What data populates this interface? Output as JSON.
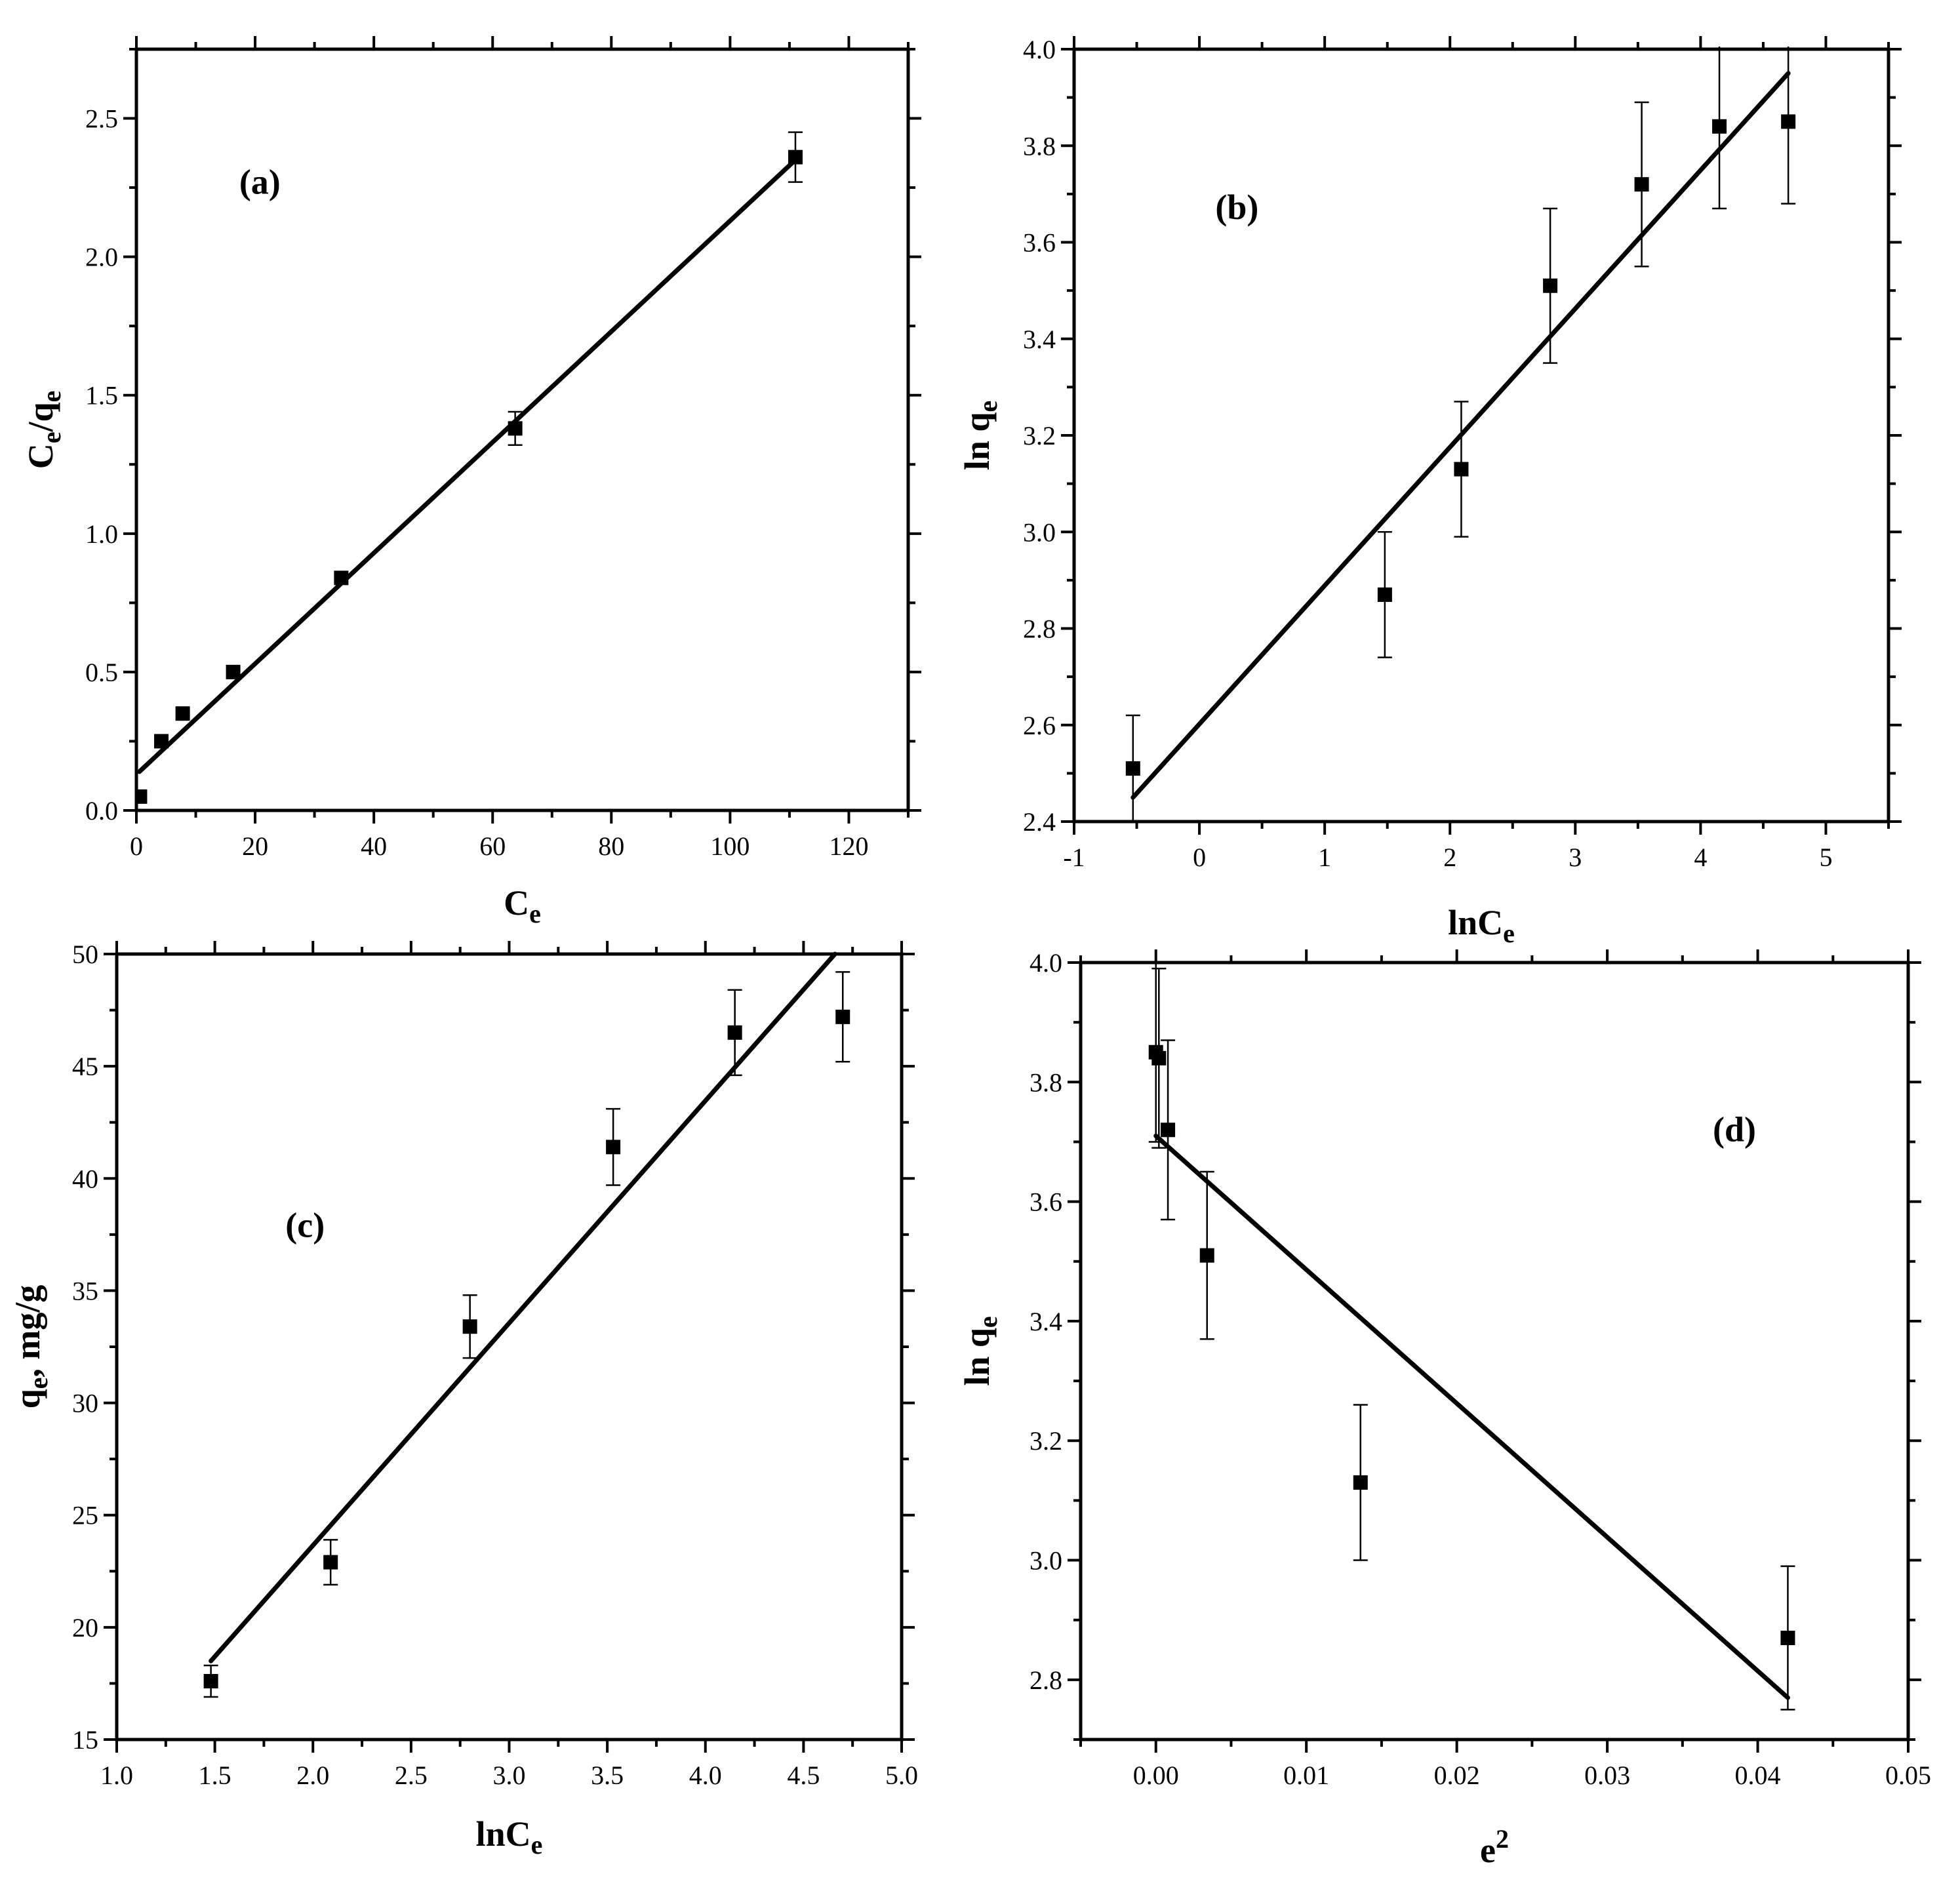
{
  "chart_data": [
    {
      "type": "scatter",
      "panel_label": "(a)",
      "xlabel": "C",
      "xlabel_sub": "e",
      "ylabel_parts": [
        [
          "C",
          ""
        ],
        [
          "e",
          "sub"
        ],
        [
          "/q",
          ""
        ],
        [
          "e",
          "sub"
        ]
      ],
      "xlim": [
        0,
        130
      ],
      "ylim": [
        0,
        2.75
      ],
      "xticks": [
        0,
        20,
        40,
        60,
        80,
        100,
        120
      ],
      "xtick_labels": [
        "0",
        "20",
        "40",
        "60",
        "80",
        "100",
        "120"
      ],
      "yticks": [
        0,
        0.5,
        1.0,
        1.5,
        2.0,
        2.5
      ],
      "ytick_labels": [
        "0.0",
        "0.5",
        "1.0",
        "1.5",
        "2.0",
        "2.5"
      ],
      "series": [
        {
          "x": [
            0.6,
            4.2,
            7.8,
            16.3,
            34.5,
            63.8,
            111.0
          ],
          "y": [
            0.05,
            0.25,
            0.35,
            0.5,
            0.84,
            1.38,
            2.36
          ],
          "err": [
            0,
            0,
            0,
            0,
            0,
            0.06,
            0.09
          ]
        }
      ],
      "fit": {
        "x": [
          0.5,
          111
        ],
        "y": [
          0.14,
          2.35
        ]
      }
    },
    {
      "type": "scatter",
      "panel_label": "(b)",
      "xlabel": "lnC",
      "xlabel_sub": "e",
      "ylabel_parts": [
        [
          "ln q",
          ""
        ],
        [
          "e",
          "sub"
        ]
      ],
      "xlim": [
        -1,
        5.5
      ],
      "ylim": [
        2.4,
        4.0
      ],
      "xticks": [
        -1,
        0,
        1,
        2,
        3,
        4,
        5
      ],
      "xtick_labels": [
        "-1",
        "0",
        "1",
        "2",
        "3",
        "4",
        "5"
      ],
      "yticks": [
        2.4,
        2.6,
        2.8,
        3.0,
        3.2,
        3.4,
        3.6,
        3.8,
        4.0
      ],
      "ytick_labels": [
        "2.4",
        "2.6",
        "2.8",
        "3.0",
        "3.2",
        "3.4",
        "3.6",
        "3.8",
        "4.0"
      ],
      "series": [
        {
          "x": [
            -0.53,
            1.48,
            2.09,
            2.8,
            3.53,
            4.15,
            4.7
          ],
          "y": [
            2.51,
            2.87,
            3.13,
            3.51,
            3.72,
            3.84,
            3.85
          ],
          "err": [
            0.11,
            0.13,
            0.14,
            0.16,
            0.17,
            0.17,
            0.17
          ]
        }
      ],
      "fit": {
        "x": [
          -0.53,
          4.7
        ],
        "y": [
          2.45,
          3.95
        ]
      }
    },
    {
      "type": "scatter",
      "panel_label": "(c)",
      "xlabel": "lnC",
      "xlabel_sub": "e",
      "ylabel_parts": [
        [
          "q",
          ""
        ],
        [
          "e",
          "sub"
        ],
        [
          ", mg/g",
          ""
        ]
      ],
      "xlim": [
        1.0,
        5.0
      ],
      "ylim": [
        15,
        50
      ],
      "xticks": [
        1.0,
        1.5,
        2.0,
        2.5,
        3.0,
        3.5,
        4.0,
        4.5,
        5.0
      ],
      "xtick_labels": [
        "1.0",
        "1.5",
        "2.0",
        "2.5",
        "3.0",
        "3.5",
        "4.0",
        "4.5",
        "5.0"
      ],
      "yticks": [
        15,
        20,
        25,
        30,
        35,
        40,
        45,
        50
      ],
      "ytick_labels": [
        "15",
        "20",
        "25",
        "30",
        "35",
        "40",
        "45",
        "50"
      ],
      "series": [
        {
          "x": [
            1.48,
            2.09,
            2.8,
            3.53,
            4.15,
            4.7
          ],
          "y": [
            17.6,
            22.9,
            33.4,
            41.4,
            46.5,
            47.2
          ],
          "err": [
            0.7,
            1.0,
            1.4,
            1.7,
            1.9,
            2.0
          ]
        }
      ],
      "fit": {
        "x": [
          1.48,
          4.66
        ],
        "y": [
          18.5,
          50.0
        ]
      }
    },
    {
      "type": "scatter",
      "panel_label": "(d)",
      "xlabel": "e",
      "xlabel_sup": "2",
      "ylabel_parts": [
        [
          "ln q",
          ""
        ],
        [
          "e",
          "sub"
        ]
      ],
      "xlim": [
        -0.005,
        0.05
      ],
      "ylim": [
        2.7,
        4.0
      ],
      "xticks": [
        0.0,
        0.01,
        0.02,
        0.03,
        0.04,
        0.05
      ],
      "xtick_labels": [
        "0.00",
        "0.01",
        "0.02",
        "0.03",
        "0.04",
        "0.05"
      ],
      "yticks": [
        2.8,
        3.0,
        3.2,
        3.4,
        3.6,
        3.8,
        4.0
      ],
      "ytick_labels": [
        "2.8",
        "3.0",
        "3.2",
        "3.4",
        "3.6",
        "3.8",
        "4.0"
      ],
      "series": [
        {
          "x": [
            0.0,
            0.0002,
            0.0008,
            0.0034,
            0.0136,
            0.042
          ],
          "y": [
            3.85,
            3.84,
            3.72,
            3.51,
            3.13,
            2.87
          ],
          "err": [
            0.15,
            0.15,
            0.15,
            0.14,
            0.13,
            0.12
          ]
        }
      ],
      "fit": {
        "x": [
          0.0,
          0.042
        ],
        "y": [
          3.71,
          2.77
        ]
      }
    }
  ]
}
